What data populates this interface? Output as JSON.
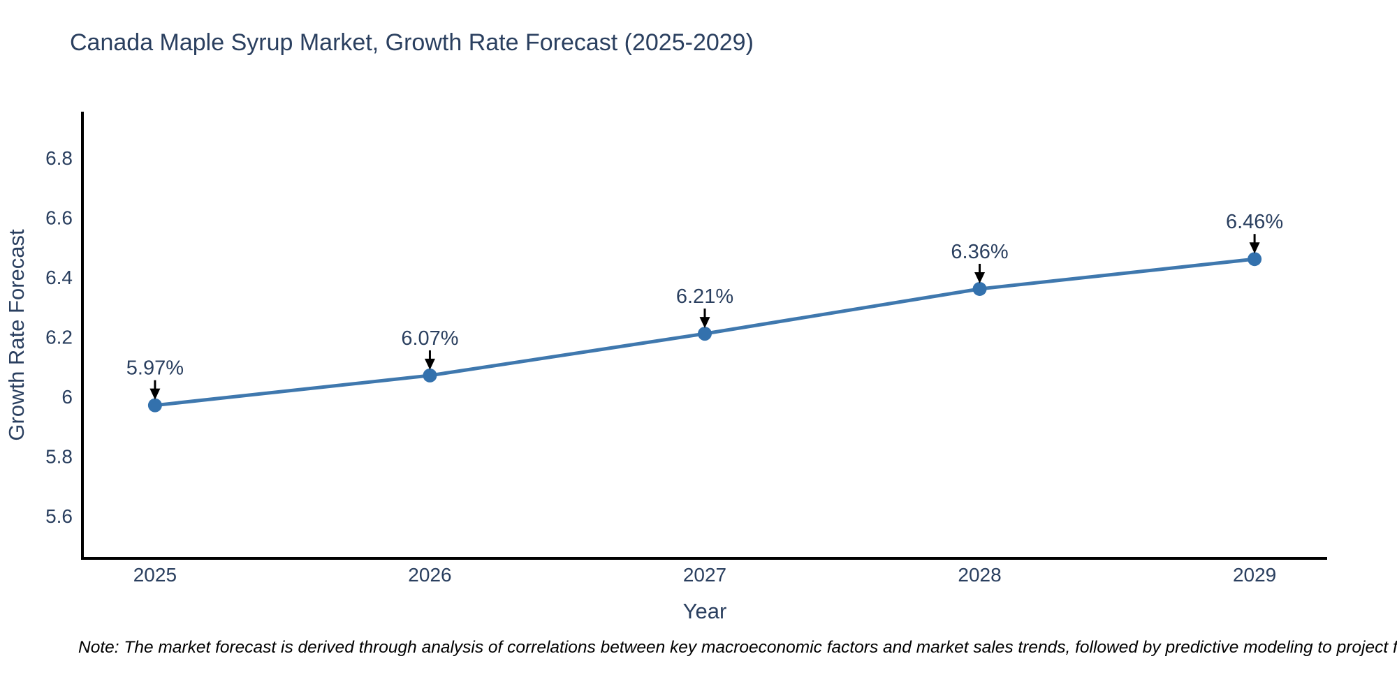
{
  "title": "Canada Maple Syrup Market, Growth Rate Forecast (2025-2029)",
  "note": "Note: The market forecast is derived through analysis of correlations between key macroeconomic factors and market sales trends, followed by predictive modeling to project future sales",
  "colors": {
    "background": "#ffffff",
    "text": "#2a3f5f",
    "axis": "#000000",
    "line": "#3f78ae",
    "marker": "#3371ad",
    "annotation": "#000000"
  },
  "chart_data": {
    "type": "line",
    "title": "Canada Maple Syrup Market, Growth Rate Forecast (2025-2029)",
    "xlabel": "Year",
    "ylabel": "Growth Rate Forecast",
    "x": [
      2025,
      2026,
      2027,
      2028,
      2029
    ],
    "y": [
      5.97,
      6.07,
      6.21,
      6.36,
      6.46
    ],
    "point_labels": [
      "5.97%",
      "6.07%",
      "6.21%",
      "6.36%",
      "6.46%"
    ],
    "xtick_labels": [
      "2025",
      "2026",
      "2027",
      "2028",
      "2029"
    ],
    "yticks": [
      5.6,
      5.8,
      6.0,
      6.2,
      6.4,
      6.6,
      6.8
    ],
    "ytick_labels": [
      "5.6",
      "5.8",
      "6",
      "6.2",
      "6.4",
      "6.6",
      "6.8"
    ],
    "xlim": [
      2024.736,
      2029.264
    ],
    "ylim": [
      5.457,
      6.954
    ],
    "grid": false,
    "legend": false,
    "marker_style": "circle",
    "annotation_style": "arrow-down-to-point"
  }
}
